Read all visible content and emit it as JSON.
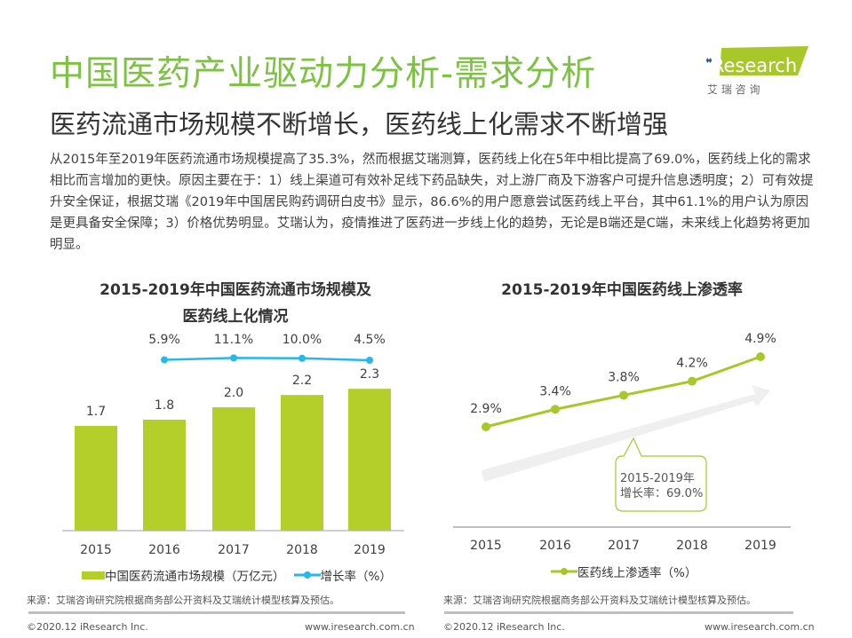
{
  "header": {
    "title": "中国医药产业驱动力分析-需求分析",
    "subtitle": "医药流通市场规模不断增长，医药线上化需求不断增强"
  },
  "logo": {
    "brand": "iResearch",
    "cn": "艾 瑞 咨 询",
    "color": "#a8c82a",
    "dot_color": "#2a5a9a"
  },
  "body_text": "从2015年至2019年医药流通市场规模提高了35.3%，然而根据艾瑞测算，医药线上化在5年中相比提高了69.0%，医药线上化的需求相比而言增加的更快。原因主要在于：1）线上渠道可有效补足线下药品缺失，对上游厂商及下游客户可提升信息透明度；2）可有效提升安全保证，根据艾瑞《2019年中国居民购药调研白皮书》显示，86.6%的用户愿意尝试医药线上平台，其中61.1%的用户认为原因是更具备安全保障；3）价格优势明显。艾瑞认为，疫情推进了医药进一步线上化的趋势，无论是B端还是C端，未来线上化趋势将更加明显。",
  "chart_data": [
    {
      "type": "bar",
      "title": "2015-2019年中国医药流通市场规模及医药线上化情况",
      "title_lines": [
        "2015-2019年中国医药流通市场规模及",
        "医药线上化情况"
      ],
      "categories": [
        "2015",
        "2016",
        "2017",
        "2018",
        "2019"
      ],
      "series": [
        {
          "name": "中国医药流通市场规模（万亿元）",
          "type": "bar",
          "values": [
            1.7,
            1.8,
            2.0,
            2.2,
            2.3
          ],
          "labels": [
            "1.7",
            "1.8",
            "2.0",
            "2.2",
            "2.3"
          ],
          "color": "#b5cf2a"
        },
        {
          "name": "增长率（%）",
          "type": "line",
          "values": [
            null,
            5.9,
            11.1,
            10.0,
            4.5
          ],
          "labels": [
            "",
            "5.9%",
            "11.1%",
            "10.0%",
            "4.5%"
          ],
          "color": "#29b6e8"
        }
      ],
      "legend": "bottom"
    },
    {
      "type": "line",
      "title": "2015-2019年中国医药线上渗透率",
      "categories": [
        "2015",
        "2016",
        "2017",
        "2018",
        "2019"
      ],
      "series": [
        {
          "name": "医药线上渗透率（%）",
          "values": [
            2.9,
            3.4,
            3.8,
            4.2,
            4.9
          ],
          "labels": [
            "2.9%",
            "3.4%",
            "3.8%",
            "4.2%",
            "4.9%"
          ],
          "color": "#a8c82a"
        }
      ],
      "annotation": [
        "2015-2019年",
        "增长率：69.0%"
      ],
      "legend": "bottom"
    }
  ],
  "footer": {
    "source": "来源：艾瑞咨询研究院根据商务部公开资料及艾瑞统计模型核算及预估。",
    "copyright": "©2020.12 iResearch Inc.",
    "website": "www.iresearch.com.cn"
  }
}
